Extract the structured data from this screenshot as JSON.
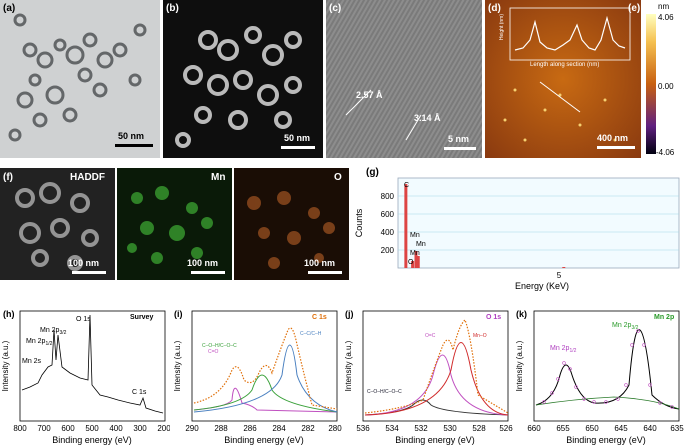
{
  "panels": {
    "a": {
      "label": "(a)",
      "scale": "50 nm"
    },
    "b": {
      "label": "(b)",
      "scale": "50 nm"
    },
    "c": {
      "label": "(c)",
      "scale": "5 nm",
      "d1": "2.57 Å",
      "d2": "3.14 Å"
    },
    "d": {
      "label": "(d)",
      "scale": "400 nm",
      "inset_ylabel": "Height (nm)",
      "inset_xlabel": "Length along section (nm)",
      "inset_xticks": [
        "0",
        "100",
        "200",
        "300",
        "400",
        "500"
      ],
      "inset_yticks": [
        "0",
        "1",
        "2",
        "3"
      ]
    },
    "e": {
      "label": "(e)",
      "unit": "nm",
      "max": "4.06",
      "mid": "0.00",
      "min": "-4.06"
    },
    "f": {
      "label": "(f)",
      "haadf": "HADDF",
      "mn": "Mn",
      "o": "O",
      "scale": "100 nm"
    },
    "g": {
      "label": "(g)",
      "ylabel": "Counts",
      "xlabel": "Energy (KeV)",
      "yticks": [
        "200",
        "400",
        "600",
        "800"
      ],
      "xtick": "5",
      "peaks": [
        "C",
        "Mn",
        "Mn",
        "Mn",
        "O"
      ]
    },
    "h": {
      "label": "(h)",
      "title": "Survey",
      "ylabel": "Intensity (a.u.)",
      "xlabel": "Binding energy (eV)",
      "xticks": [
        "800",
        "700",
        "600",
        "500",
        "400",
        "300",
        "200"
      ],
      "peaks": [
        "Mn 2s",
        "Mn 2p",
        "Mn 2p",
        "O 1s",
        "C 1s"
      ],
      "sub1": "3/2",
      "sub2": "1/2"
    },
    "i": {
      "label": "(i)",
      "title": "C 1s",
      "ylabel": "Intensity (a.u.)",
      "xlabel": "Binding energy (eV)",
      "xticks": [
        "290",
        "288",
        "286",
        "284",
        "282",
        "280"
      ],
      "comp1": "C=O",
      "comp2": "C–O–H/C–O–C",
      "comp3": "C–C/C–H"
    },
    "j": {
      "label": "(j)",
      "title": "O 1s",
      "ylabel": "Intensity (a.u.)",
      "xlabel": "Binding energy (eV)",
      "xticks": [
        "536",
        "534",
        "532",
        "530",
        "528",
        "526"
      ],
      "comp1": "C–O–H/C–O–C",
      "comp2": "O=C",
      "comp3": "Mn–O"
    },
    "k": {
      "label": "(k)",
      "title": "Mn 2p",
      "ylabel": "Intensity (a.u.)",
      "xlabel": "Binding energy (eV)",
      "xticks": [
        "660",
        "655",
        "650",
        "645",
        "640",
        "635"
      ],
      "peak1": "Mn 2p",
      "peak1_sub": "1/2",
      "peak2": "Mn 2p",
      "peak2_sub": "3/2"
    }
  },
  "colors": {
    "mn_map": "#3fae35",
    "o_map": "#c8682a",
    "c_label": "#e0700a",
    "o_label": "#b040c0",
    "mn_label": "#2a9a2a",
    "cc": "#4a80c0",
    "coc": "#3aa13a",
    "co": "#c050c0"
  },
  "chart_data": [
    {
      "type": "bar",
      "title": "",
      "xlabel": "Energy (KeV)",
      "ylabel": "Counts",
      "ylim": [
        0,
        900
      ],
      "series": [
        {
          "values": [
            {
              "x": 0.28,
              "y": 840
            },
            {
              "x": 0.52,
              "y": 70
            },
            {
              "x": 0.64,
              "y": 170
            },
            {
              "x": 0.72,
              "y": 120
            },
            {
              "x": 5.9,
              "y": 10
            }
          ]
        }
      ]
    },
    {
      "type": "line",
      "title": "Survey",
      "xlabel": "Binding energy (eV)",
      "ylabel": "Intensity (a.u.)",
      "xlim": [
        800,
        200
      ]
    },
    {
      "type": "line",
      "title": "C 1s",
      "xlabel": "Binding energy (eV)",
      "ylabel": "Intensity (a.u.)",
      "xlim": [
        290,
        280
      ]
    },
    {
      "type": "line",
      "title": "O 1s",
      "xlabel": "Binding energy (eV)",
      "ylabel": "Intensity (a.u.)",
      "xlim": [
        536,
        526
      ]
    },
    {
      "type": "line",
      "title": "Mn 2p",
      "xlabel": "Binding energy (eV)",
      "ylabel": "Intensity (a.u.)",
      "xlim": [
        660,
        635
      ]
    }
  ]
}
